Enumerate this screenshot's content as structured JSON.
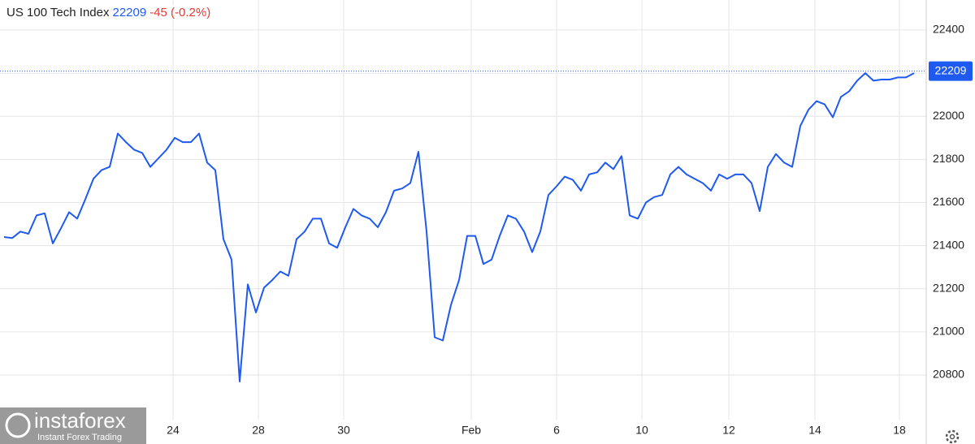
{
  "chart_data": {
    "type": "line",
    "title": "US 100 Tech Index",
    "last_price": 22209,
    "change": "-45 (-0.2%)",
    "watermark": {
      "name": "instaforex",
      "tagline": "Instant Forex Trading"
    },
    "x": [
      0,
      1,
      2,
      3,
      4,
      5,
      6,
      7,
      8,
      9,
      10,
      11,
      12,
      13,
      14,
      15,
      16,
      17,
      18,
      19,
      20,
      21,
      22,
      23,
      24,
      25,
      26,
      27,
      28,
      29,
      30,
      31,
      32,
      33,
      34,
      35,
      36,
      37,
      38,
      39,
      40,
      41,
      42,
      43,
      44,
      45,
      46,
      47,
      48,
      49,
      50,
      51,
      52,
      53,
      54,
      55,
      56,
      57,
      58,
      59,
      60,
      61,
      62,
      63,
      64,
      65,
      66,
      67,
      68,
      69,
      70,
      71,
      72,
      73,
      74,
      75,
      76,
      77,
      78,
      79,
      80,
      81,
      82,
      83,
      84,
      85,
      86,
      87,
      88,
      89,
      90,
      91,
      92,
      93,
      94,
      95,
      96,
      97,
      98,
      99,
      100,
      101,
      102,
      103,
      104,
      105,
      106,
      107,
      108,
      109,
      110,
      111,
      112
    ],
    "series": [
      {
        "color": "#1f5af0",
        "values": [
          21440,
          21435,
          21465,
          21455,
          21540,
          21550,
          21410,
          21480,
          21555,
          21525,
          21615,
          21710,
          21750,
          21765,
          21920,
          21880,
          21845,
          21830,
          21765,
          21805,
          21845,
          21900,
          21880,
          21880,
          21920,
          21785,
          21750,
          21430,
          21335,
          20770,
          21220,
          21090,
          21205,
          21240,
          21280,
          21260,
          21430,
          21465,
          21525,
          21525,
          21410,
          21390,
          21485,
          21570,
          21540,
          21525,
          21485,
          21555,
          21655,
          21665,
          21690,
          21835,
          21465,
          20975,
          20960,
          21125,
          21240,
          21445,
          21445,
          21315,
          21335,
          21445,
          21540,
          21525,
          21465,
          21370,
          21465,
          21635,
          21675,
          21720,
          21705,
          21655,
          21730,
          21740,
          21785,
          21755,
          21815,
          21540,
          21525,
          21600,
          21625,
          21635,
          21730,
          21765,
          21730,
          21710,
          21690,
          21655,
          21730,
          21710,
          21730,
          21730,
          21690,
          21560,
          21765,
          21825,
          21785,
          21765,
          21955,
          22030,
          22070,
          22055,
          21995,
          22090,
          22115,
          22165,
          22200,
          22165,
          22170,
          22170,
          22180,
          22180,
          22200
        ]
      }
    ],
    "xlim": [
      -0.5,
      113.5
    ],
    "xticks": [
      {
        "value": 20.8,
        "label": "24"
      },
      {
        "value": 31.3,
        "label": "28"
      },
      {
        "value": 41.8,
        "label": "30"
      },
      {
        "value": 57.5,
        "label": "Feb"
      },
      {
        "value": 68,
        "label": "6"
      },
      {
        "value": 78.5,
        "label": "10"
      },
      {
        "value": 89.2,
        "label": "12"
      },
      {
        "value": 99.8,
        "label": "14"
      },
      {
        "value": 110.2,
        "label": "18"
      }
    ],
    "ylim": [
      20593,
      22539
    ],
    "yticks": [
      20800,
      21000,
      21200,
      21400,
      21600,
      21800,
      22000,
      22200,
      22400
    ],
    "grid": true
  }
}
